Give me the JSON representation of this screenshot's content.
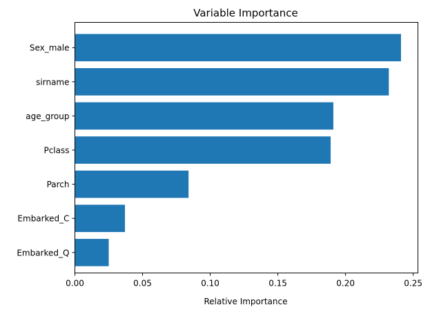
{
  "chart_data": {
    "type": "bar",
    "orientation": "horizontal",
    "title": "Variable Importance",
    "xlabel": "Relative Importance",
    "ylabel": "",
    "xlim": [
      0,
      0.2535
    ],
    "xticks": [
      0.0,
      0.05,
      0.1,
      0.15,
      0.2,
      0.25
    ],
    "xtick_labels": [
      "0.00",
      "0.05",
      "0.10",
      "0.15",
      "0.20",
      "0.25"
    ],
    "categories": [
      "Embarked_Q",
      "Embarked_C",
      "Parch",
      "Pclass",
      "age_group",
      "sirname",
      "Sex_male"
    ],
    "values": [
      0.025,
      0.037,
      0.084,
      0.189,
      0.191,
      0.232,
      0.241
    ],
    "bar_color": "#1f77b4",
    "grid": false,
    "legend": "none"
  }
}
